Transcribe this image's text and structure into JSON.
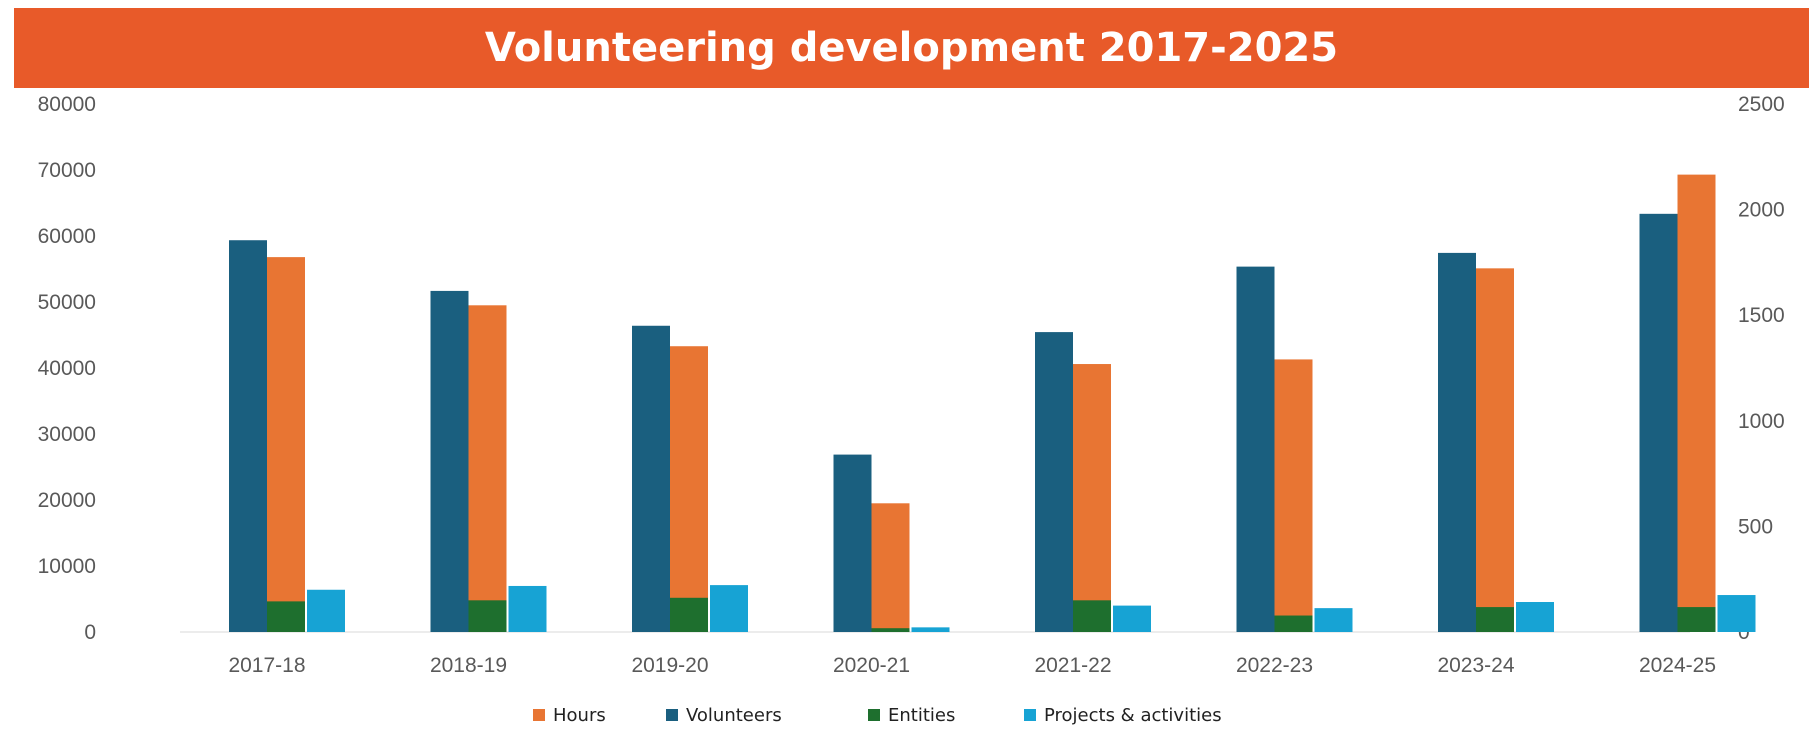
{
  "chart_data": {
    "type": "bar",
    "title": "Volunteering development 2017-2025",
    "categories": [
      "2017-18",
      "2018-19",
      "2019-20",
      "2020-21",
      "2021-22",
      "2022-23",
      "2023-24",
      "2024-25"
    ],
    "y_left": {
      "min": 0,
      "max": 80000,
      "ticks": [
        0,
        10000,
        20000,
        30000,
        40000,
        50000,
        60000,
        70000,
        80000
      ]
    },
    "y_right": {
      "min": 0,
      "max": 2500,
      "ticks": [
        0,
        500,
        1000,
        1500,
        2000,
        2500
      ]
    },
    "series": [
      {
        "name": "Volunteers",
        "axis": "right",
        "color": "#1a5f7f",
        "values": [
          1855,
          1615,
          1450,
          840,
          1420,
          1730,
          1795,
          1980
        ]
      },
      {
        "name": "Hours",
        "axis": "left",
        "color": "#e87533",
        "values": [
          56800,
          49500,
          43300,
          19500,
          40600,
          41300,
          55100,
          69300
        ]
      },
      {
        "name": "Entities",
        "axis": "right",
        "color": "#1e6f2e",
        "values": [
          145,
          150,
          162,
          18,
          150,
          78,
          118,
          118
        ]
      },
      {
        "name": "Projects & activities",
        "axis": "right",
        "color": "#17a3d4",
        "values": [
          200,
          218,
          222,
          22,
          125,
          113,
          142,
          175
        ]
      }
    ],
    "legend": {
      "position": "bottom",
      "order": [
        "Hours",
        "Volunteers",
        "Entities",
        "Projects & activities"
      ]
    },
    "grid": false
  }
}
